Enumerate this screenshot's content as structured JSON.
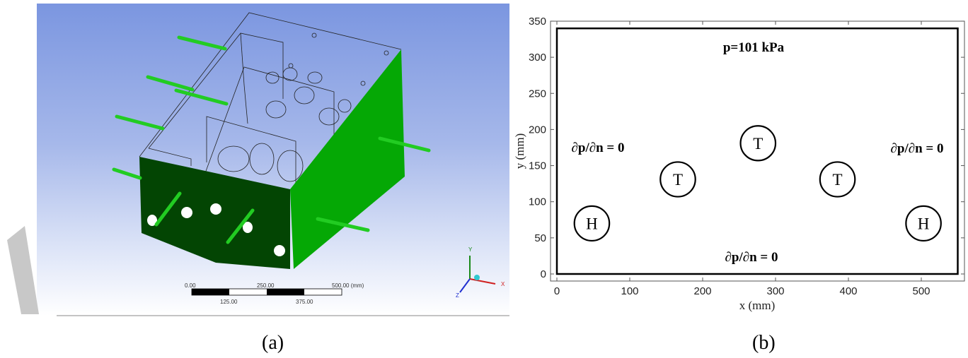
{
  "panel_a": {
    "caption": "(a)",
    "scale_bar": {
      "top_labels": [
        "0.00",
        "250.00",
        "500.00 (mm)"
      ],
      "bottom_labels": [
        "125.00",
        "375.00"
      ]
    },
    "triad": {
      "x": "X",
      "y": "Y",
      "z": "Z"
    },
    "colors": {
      "background_top": "#7b96e0",
      "front_face": "#034503",
      "side_face": "#05a805",
      "pipes": "#22cc22"
    }
  },
  "panel_b": {
    "caption": "(b)",
    "annotations": {
      "top": "p=101 kPa",
      "left": "∂p/∂n = 0",
      "right": "∂p/∂n = 0",
      "bottom": "∂p/∂n = 0"
    },
    "chart_data": {
      "type": "scatter",
      "xlabel": "x (mm)",
      "ylabel": "y (mm)",
      "xlim": [
        -10,
        560
      ],
      "ylim": [
        -10,
        350
      ],
      "xticks": [
        "0",
        "100",
        "200",
        "300",
        "400",
        "500"
      ],
      "yticks": [
        "0",
        "50",
        "100",
        "150",
        "200",
        "250",
        "300",
        "350"
      ],
      "domain": {
        "x": [
          0,
          550
        ],
        "y": [
          0,
          340
        ]
      },
      "circles": [
        {
          "label": "H",
          "x": 48,
          "y": 70,
          "r": 24
        },
        {
          "label": "T",
          "x": 166,
          "y": 131,
          "r": 24
        },
        {
          "label": "T",
          "x": 276,
          "y": 181,
          "r": 24
        },
        {
          "label": "T",
          "x": 385,
          "y": 131,
          "r": 24
        },
        {
          "label": "H",
          "x": 503,
          "y": 70,
          "r": 24
        }
      ]
    }
  }
}
